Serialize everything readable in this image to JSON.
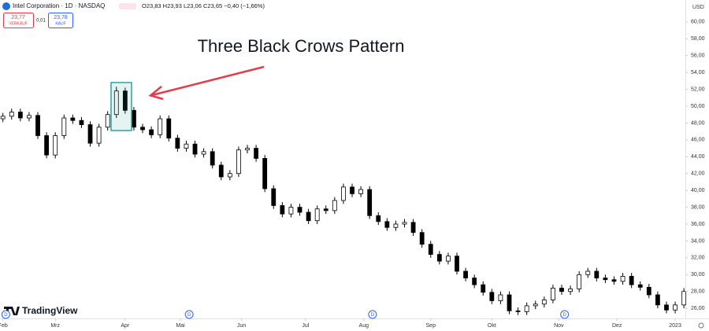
{
  "chart_data": {
    "type": "candlestick",
    "header": {
      "symbol": "Intel Corporation · 1D · NASDAQ",
      "ohlc": "O23,83 H23,93 L23,06 C23,65 −0,40 (−1,66%)",
      "sell_price": "23,77",
      "sell_label": "VERKAUF",
      "spread": "0,01",
      "buy_price": "23,78",
      "buy_label": "KAUF"
    },
    "currency": "USD",
    "annotation": "Three Black Crows Pattern",
    "logo": "TradingView",
    "up_color": "#ffffff",
    "down_color": "#000000",
    "outline_color": "#000000",
    "xlim": [
      -1,
      234.5
    ],
    "ylim": [
      24.8,
      62.6
    ],
    "xticks": [
      {
        "value": 0,
        "label": "Feb"
      },
      {
        "value": 18,
        "label": "Mrz"
      },
      {
        "value": 42,
        "label": "Apr"
      },
      {
        "value": 61,
        "label": "Mai"
      },
      {
        "value": 82,
        "label": "Jun"
      },
      {
        "value": 104,
        "label": "Jul"
      },
      {
        "value": 124,
        "label": "Aug"
      },
      {
        "value": 147,
        "label": "Sep"
      },
      {
        "value": 168,
        "label": "Okt"
      },
      {
        "value": 191,
        "label": "Nov"
      },
      {
        "value": 211,
        "label": "Dez"
      },
      {
        "value": 231,
        "label": "2023"
      }
    ],
    "yticks": [
      {
        "value": 26,
        "label": "26,00"
      },
      {
        "value": 28,
        "label": "28,00"
      },
      {
        "value": 30,
        "label": "30,00"
      },
      {
        "value": 32,
        "label": "32,00"
      },
      {
        "value": 34,
        "label": "34,00"
      },
      {
        "value": 36,
        "label": "36,00"
      },
      {
        "value": 38,
        "label": "38,00"
      },
      {
        "value": 40,
        "label": "40,00"
      },
      {
        "value": 42,
        "label": "42,00"
      },
      {
        "value": 44,
        "label": "44,00"
      },
      {
        "value": 46,
        "label": "46,00"
      },
      {
        "value": 48,
        "label": "48,00"
      },
      {
        "value": 50,
        "label": "50,00"
      },
      {
        "value": 52,
        "label": "52,00"
      },
      {
        "value": 54,
        "label": "54,00"
      },
      {
        "value": 56,
        "label": "56,00"
      },
      {
        "value": 58,
        "label": "58,00"
      },
      {
        "value": 60,
        "label": "60,00"
      }
    ],
    "event_markers": [
      {
        "x": 1,
        "label": "D"
      },
      {
        "x": 64,
        "label": "D"
      },
      {
        "x": 127,
        "label": "D"
      },
      {
        "x": 193,
        "label": "D"
      }
    ],
    "x": [
      0,
      3,
      6,
      9,
      12,
      15,
      18,
      21,
      24,
      27,
      30,
      33,
      36,
      39,
      42,
      45,
      48,
      51,
      54,
      57,
      60,
      63,
      66,
      69,
      72,
      75,
      78,
      81,
      84,
      87,
      90,
      93,
      96,
      99,
      102,
      105,
      108,
      111,
      114,
      117,
      120,
      123,
      126,
      129,
      132,
      135,
      138,
      141,
      144,
      147,
      150,
      153,
      156,
      159,
      162,
      165,
      168,
      171,
      174,
      177,
      180,
      183,
      186,
      189,
      192,
      195,
      198,
      201,
      204,
      207,
      210,
      213,
      216,
      219,
      222,
      225,
      228,
      231,
      234
    ],
    "open": [
      48.5,
      48.8,
      49.3,
      48.6,
      48.9,
      46.5,
      44.2,
      46.5,
      48.6,
      48.3,
      47.8,
      45.6,
      47.5,
      49.0,
      51.8,
      49.5,
      47.5,
      47.2,
      46.6,
      48.5,
      46.2,
      45.0,
      45.5,
      44.3,
      44.6,
      43.0,
      41.6,
      42.0,
      44.8,
      45.0,
      43.8,
      40.2,
      38.2,
      37.2,
      38.0,
      37.4,
      36.4,
      37.8,
      37.6,
      38.8,
      40.4,
      39.6,
      40.1,
      37.0,
      36.3,
      35.6,
      36.0,
      36.2,
      35.0,
      33.6,
      32.4,
      31.6,
      32.2,
      30.4,
      29.6,
      28.8,
      27.9,
      26.9,
      27.6,
      25.7,
      25.6,
      26.3,
      26.5,
      27.0,
      28.4,
      28.0,
      28.3,
      30.0,
      30.4,
      29.6,
      29.4,
      29.2,
      29.8,
      28.8,
      28.5,
      27.6,
      26.4,
      25.8,
      26.4
    ],
    "high": [
      49.2,
      49.7,
      49.7,
      49.3,
      49.3,
      46.9,
      46.9,
      49.0,
      49.0,
      48.7,
      48.2,
      47.9,
      49.4,
      52.3,
      52.2,
      49.9,
      47.9,
      47.6,
      48.9,
      48.9,
      46.6,
      45.9,
      45.9,
      45.0,
      45.0,
      43.4,
      42.4,
      45.2,
      45.4,
      45.4,
      44.2,
      40.6,
      38.6,
      38.4,
      38.4,
      37.8,
      38.2,
      38.2,
      39.2,
      40.8,
      40.8,
      40.5,
      40.5,
      37.4,
      36.7,
      36.4,
      36.6,
      36.6,
      35.4,
      34.0,
      32.8,
      32.6,
      32.6,
      30.8,
      30.0,
      29.2,
      28.3,
      28.0,
      28.0,
      26.1,
      26.7,
      26.9,
      27.4,
      28.8,
      28.8,
      28.7,
      30.4,
      30.8,
      30.8,
      30.0,
      29.8,
      30.2,
      30.2,
      29.2,
      28.9,
      28.0,
      26.8,
      26.8,
      28.4
    ],
    "low": [
      48.1,
      48.4,
      48.2,
      48.2,
      46.1,
      43.8,
      43.8,
      46.1,
      47.9,
      47.4,
      45.2,
      45.2,
      47.1,
      48.6,
      49.1,
      47.1,
      46.8,
      46.2,
      46.2,
      45.8,
      44.6,
      44.6,
      43.9,
      43.9,
      42.6,
      41.2,
      41.2,
      41.6,
      44.4,
      43.4,
      39.8,
      37.8,
      36.8,
      36.8,
      37.0,
      36.0,
      36.0,
      37.2,
      37.2,
      38.4,
      39.2,
      39.2,
      36.6,
      35.9,
      35.2,
      35.2,
      35.6,
      34.6,
      33.2,
      32.0,
      31.2,
      31.2,
      30.0,
      29.2,
      28.4,
      27.5,
      26.5,
      26.5,
      25.3,
      25.2,
      25.2,
      25.9,
      26.1,
      26.6,
      27.6,
      27.6,
      27.9,
      29.6,
      29.2,
      29.0,
      28.8,
      28.8,
      28.4,
      28.1,
      27.2,
      26.0,
      25.4,
      25.4,
      26.0
    ],
    "close": [
      48.8,
      49.3,
      48.6,
      48.9,
      46.5,
      44.2,
      46.5,
      48.6,
      48.3,
      47.8,
      45.6,
      47.5,
      49.0,
      51.8,
      49.5,
      47.5,
      47.2,
      46.6,
      48.5,
      46.2,
      45.0,
      45.5,
      44.3,
      44.6,
      43.0,
      41.6,
      42.0,
      44.8,
      45.0,
      43.8,
      40.2,
      38.2,
      37.2,
      38.0,
      37.4,
      36.4,
      37.8,
      37.6,
      38.8,
      40.4,
      39.6,
      40.1,
      37.0,
      36.3,
      35.6,
      36.0,
      36.2,
      35.0,
      33.6,
      32.4,
      31.6,
      32.2,
      30.4,
      29.6,
      28.8,
      27.9,
      26.9,
      27.6,
      25.7,
      25.6,
      26.3,
      26.5,
      27.0,
      28.4,
      28.0,
      28.3,
      30.0,
      30.4,
      29.6,
      29.4,
      29.2,
      29.8,
      28.8,
      28.5,
      27.6,
      26.4,
      25.8,
      26.4,
      28.0
    ]
  }
}
